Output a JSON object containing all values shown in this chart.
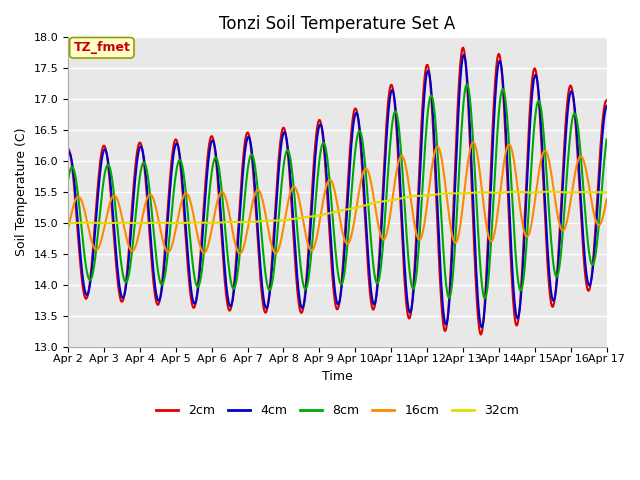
{
  "title": "Tonzi Soil Temperature Set A",
  "xlabel": "Time",
  "ylabel": "Soil Temperature (C)",
  "ylim": [
    13.0,
    18.0
  ],
  "yticks": [
    13.0,
    13.5,
    14.0,
    14.5,
    15.0,
    15.5,
    16.0,
    16.5,
    17.0,
    17.5,
    18.0
  ],
  "xtick_labels": [
    "Apr 2",
    "Apr 3",
    "Apr 4",
    "Apr 5",
    "Apr 6",
    "Apr 7",
    "Apr 8",
    "Apr 9",
    "Apr 10",
    "Apr 11",
    "Apr 12",
    "Apr 13",
    "Apr 14",
    "Apr 15",
    "Apr 16",
    "Apr 17"
  ],
  "line_colors": [
    "#dd0000",
    "#0000cc",
    "#00aa00",
    "#ff8800",
    "#dddd00"
  ],
  "line_labels": [
    "2cm",
    "4cm",
    "8cm",
    "16cm",
    "32cm"
  ],
  "line_widths": [
    1.5,
    1.5,
    1.5,
    1.5,
    1.5
  ],
  "annotation_text": "TZ_fmet",
  "annotation_color": "#cc0000",
  "annotation_bg": "#ffffcc",
  "fig_bg_color": "#ffffff",
  "plot_bg": "#e8e8e8",
  "grid_color": "#ffffff",
  "title_fontsize": 12,
  "axis_fontsize": 9,
  "tick_fontsize": 8
}
